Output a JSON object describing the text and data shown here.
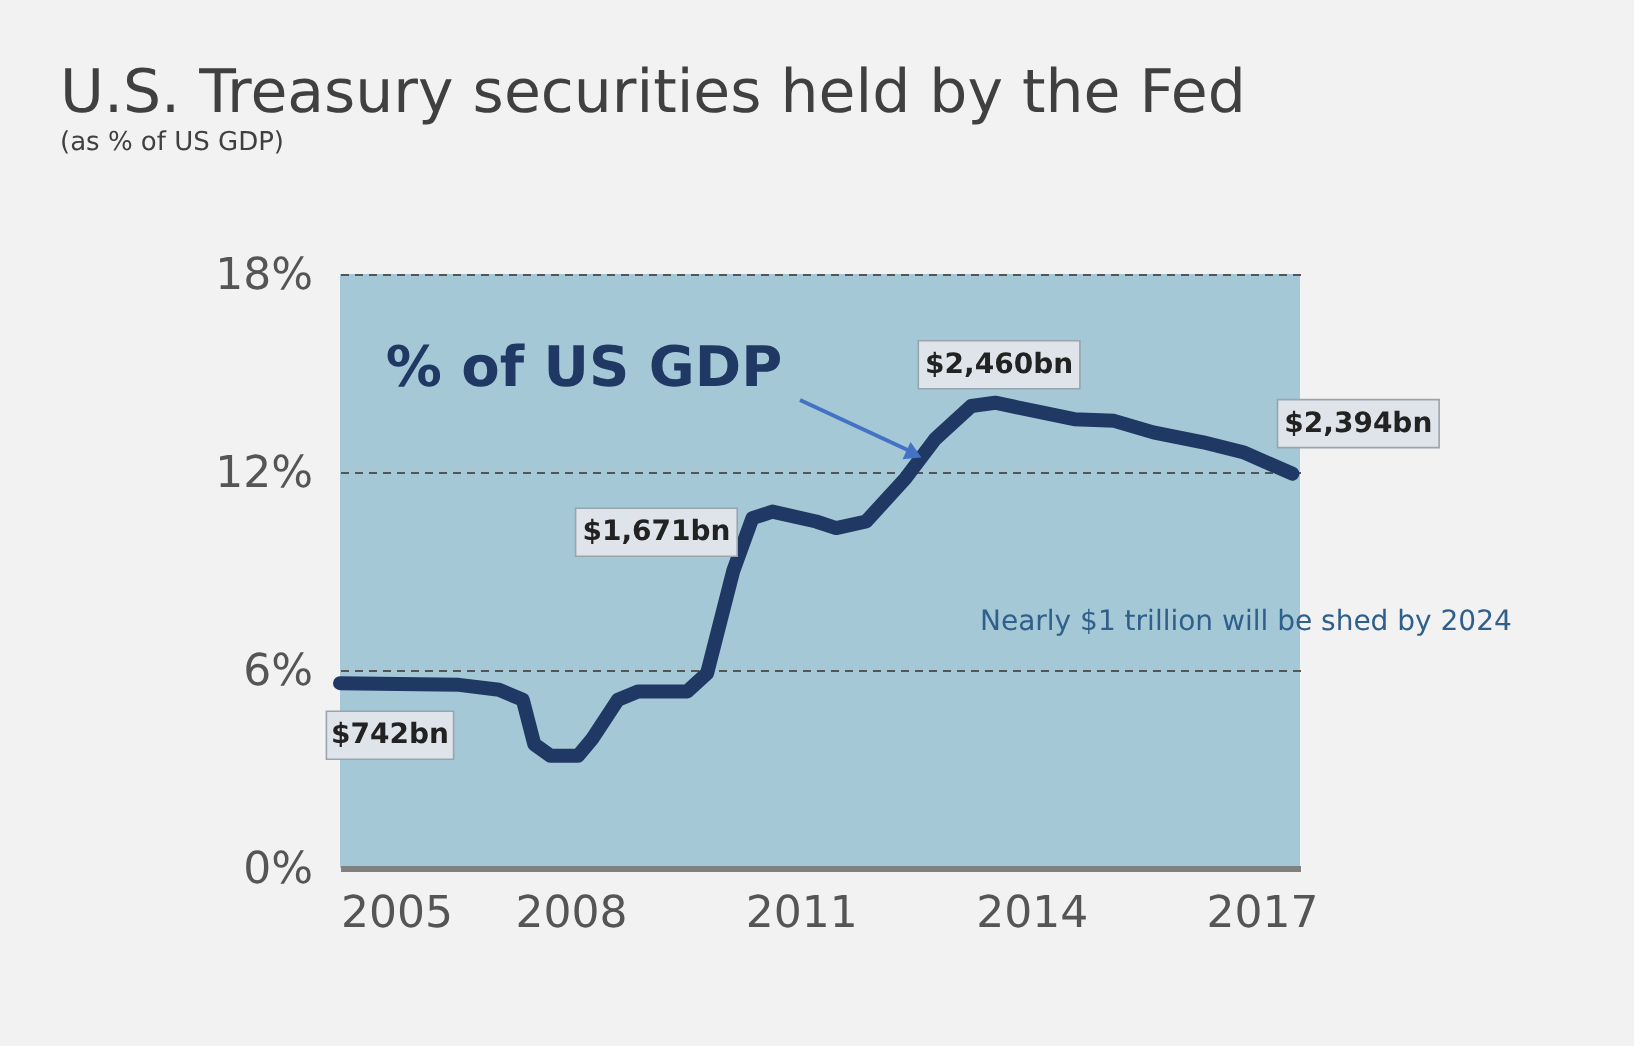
{
  "chart_data": {
    "type": "line",
    "title": "U.S. Treasury securities held by the Fed",
    "subtitle": "(as % of US GDP)",
    "x": [
      2005.0,
      2006.55,
      2007.07,
      2007.38,
      2007.53,
      2007.74,
      2008.1,
      2008.28,
      2008.62,
      2008.88,
      2009.52,
      2009.78,
      2010.12,
      2010.37,
      2010.63,
      2011.2,
      2011.46,
      2011.85,
      2012.36,
      2012.75,
      2013.22,
      2013.53,
      2014.04,
      2014.56,
      2015.08,
      2015.59,
      2016.24,
      2016.76,
      2017.4
    ],
    "series": [
      {
        "name": "% of US GDP",
        "color": "#1f3864",
        "values": [
          5.6,
          5.55,
          5.4,
          5.1,
          3.75,
          3.4,
          3.4,
          3.9,
          5.1,
          5.35,
          5.35,
          5.9,
          9.0,
          10.6,
          10.8,
          10.5,
          10.3,
          10.5,
          11.8,
          13.0,
          14.0,
          14.1,
          13.85,
          13.6,
          13.55,
          13.2,
          12.9,
          12.6,
          11.95
        ]
      }
    ],
    "xlim": [
      2005,
      2017.5
    ],
    "xticks": [
      2005,
      2008,
      2011,
      2014,
      2017
    ],
    "ylim": [
      0,
      18
    ],
    "yticks": [
      {
        "value": 0,
        "label": "0%"
      },
      {
        "value": 6,
        "label": "6%"
      },
      {
        "value": 12,
        "label": "12%"
      },
      {
        "value": 18,
        "label": "18%"
      }
    ],
    "grid": "y",
    "legend": false,
    "line_style": "solid",
    "annotations": [
      {
        "text": "$742bn",
        "x": 2005.0,
        "y": 5.6
      },
      {
        "text": "$1,671bn",
        "x": 2010.37,
        "y": 10.6
      },
      {
        "text": "$2,460bn",
        "x": 2013.53,
        "y": 14.1
      },
      {
        "text": "$2,394bn",
        "x": 2017.4,
        "y": 11.95
      },
      "Nearly $1 trillion will be shed by 2024"
    ]
  }
}
